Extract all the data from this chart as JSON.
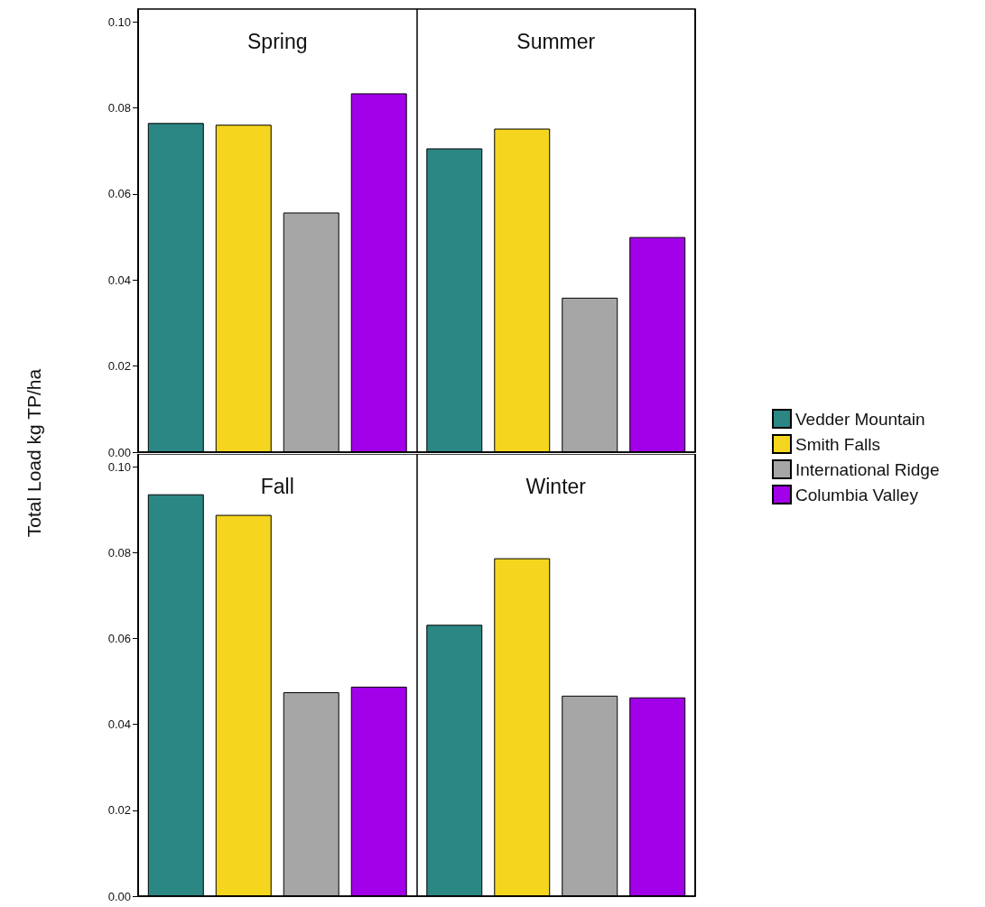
{
  "chart_data": [
    {
      "type": "bar",
      "ylabel": "Total Load kg TP/ha",
      "categories": [
        "Spring",
        "Summer"
      ],
      "ylim": [
        0,
        0.103
      ],
      "yticks": [
        {
          "value": 0,
          "label": "0.00"
        },
        {
          "value": 0.02,
          "label": "0.02"
        },
        {
          "value": 0.04,
          "label": "0.04"
        },
        {
          "value": 0.06,
          "label": "0.06"
        },
        {
          "value": 0.08,
          "label": "0.08"
        },
        {
          "value": 0.1,
          "label": "0.10"
        }
      ],
      "grid": "x",
      "legend": "right",
      "series": [
        {
          "name": "Vedder Mountain",
          "color": "#2a8784",
          "values": [
            0.0765,
            0.0706
          ]
        },
        {
          "name": "Smith Falls",
          "color": "#f5d51e",
          "values": [
            0.0761,
            0.0752
          ]
        },
        {
          "name": "International Ridge",
          "color": "#a6a6a6",
          "values": [
            0.0557,
            0.0359
          ]
        },
        {
          "name": "Columbia Valley",
          "color": "#a100e8",
          "values": [
            0.0834,
            0.05
          ]
        }
      ]
    },
    {
      "type": "bar",
      "categories": [
        "Fall",
        "Winter"
      ],
      "ylim": [
        0,
        0.103
      ],
      "yticks": [
        {
          "value": 0,
          "label": "0.00"
        },
        {
          "value": 0.02,
          "label": "0.02"
        },
        {
          "value": 0.04,
          "label": "0.04"
        },
        {
          "value": 0.06,
          "label": "0.06"
        },
        {
          "value": 0.08,
          "label": "0.08"
        },
        {
          "value": 0.1,
          "label": "0.10"
        }
      ],
      "grid": "x",
      "legend": false,
      "series": [
        {
          "color": "#2a8784",
          "values": [
            0.0936,
            0.0632
          ]
        },
        {
          "color": "#f5d51e",
          "values": [
            0.0888,
            0.0787
          ]
        },
        {
          "color": "#a6a6a6",
          "values": [
            0.0475,
            0.0467
          ]
        },
        {
          "color": "#a100e8",
          "values": [
            0.0488,
            0.0463
          ]
        }
      ]
    }
  ]
}
